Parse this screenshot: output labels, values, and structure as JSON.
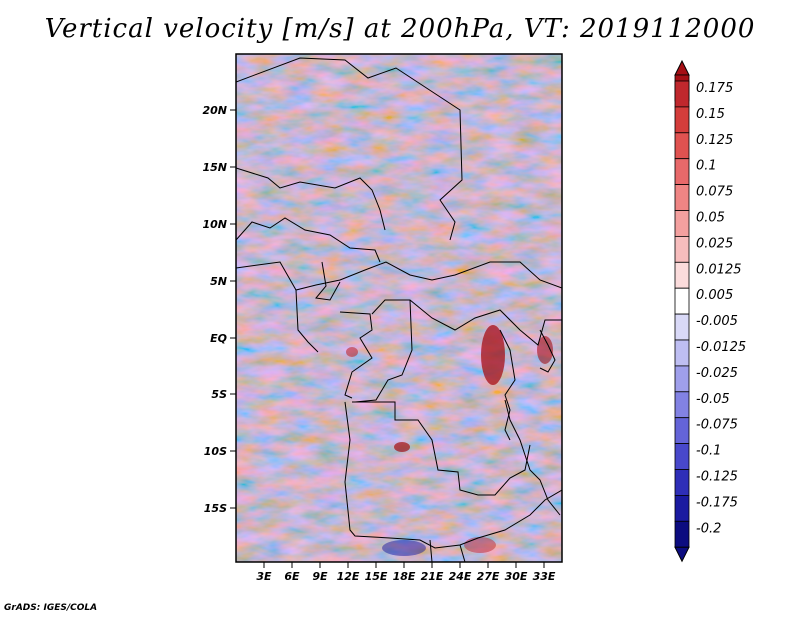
{
  "title": "Vertical velocity [m/s] at 200hPa, VT: 2019112000",
  "credit": "GrADS: IGES/COLA",
  "map": {
    "lat_labels": [
      "20N",
      "15N",
      "10N",
      "5N",
      "EQ",
      "5S",
      "10S",
      "15S"
    ],
    "lon_labels": [
      "3E",
      "6E",
      "9E",
      "12E",
      "15E",
      "18E",
      "21E",
      "24E",
      "27E",
      "30E",
      "33E"
    ],
    "lon_range": [
      0,
      35
    ],
    "lat_range": [
      -20,
      25
    ]
  },
  "colorbar": {
    "labels": [
      "0.175",
      "0.15",
      "0.125",
      "0.1",
      "0.075",
      "0.05",
      "0.025",
      "0.0125",
      "0.005",
      "-0.005",
      "-0.0125",
      "-0.025",
      "-0.05",
      "-0.075",
      "-0.1",
      "-0.125",
      "-0.175",
      "-0.2"
    ],
    "colors": [
      "#a50f15",
      "#c0282d",
      "#d43d3b",
      "#e05250",
      "#e8696a",
      "#ef8584",
      "#f3a09f",
      "#f7bdbd",
      "#fbdcdc",
      "#ffffff",
      "#d9d9f7",
      "#bebef2",
      "#9f9feb",
      "#8282e3",
      "#6464d8",
      "#4848cb",
      "#2e2eb8",
      "#1a1aa0",
      "#0c0c80"
    ]
  }
}
